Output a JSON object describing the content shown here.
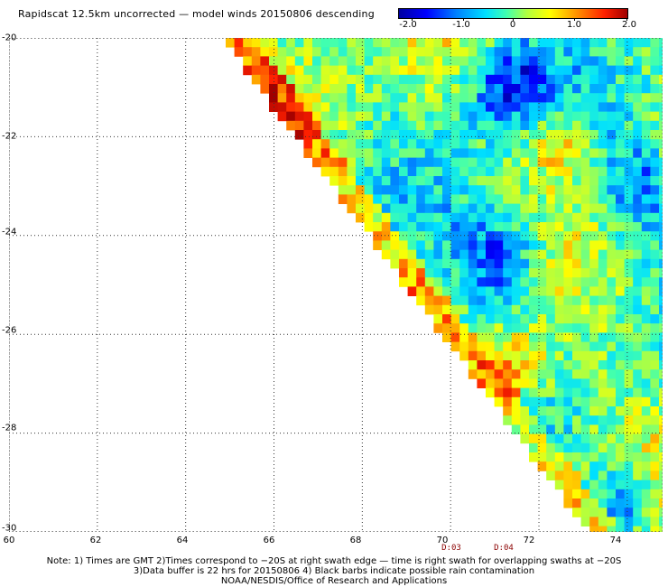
{
  "title": "Rapidscat 12.5km uncorrected — model winds 20150806 descending",
  "colorbar": {
    "ticks": [
      "-2.0",
      "-1.0",
      "0",
      "1.0",
      "2.0"
    ],
    "stops": [
      "#0000a0",
      "#0000ff",
      "#0080ff",
      "#00e0ff",
      "#40ffb0",
      "#b0ff40",
      "#ffff00",
      "#ff9000",
      "#ff2000",
      "#a00000"
    ]
  },
  "axes": {
    "lat_labels": [
      "-20",
      "-22",
      "-24",
      "-26",
      "-28",
      "-30"
    ],
    "lon_labels": [
      "60",
      "62",
      "64",
      "66",
      "68",
      "70",
      "72",
      "74"
    ],
    "lat_range": [
      -30,
      -20
    ],
    "lon_range": [
      60,
      74.8
    ],
    "grid": "dotted"
  },
  "swath_times": [
    {
      "label": "D:03",
      "lon": 70.2
    },
    {
      "label": "D:04",
      "lon": 71.4
    }
  ],
  "notes": [
    "Note: 1) Times are GMT 2)Times correspond to −20S at right swath edge — time is right swath for overlapping swaths at −20S",
    "3)Data buffer is 22 hrs for 20150806 4) Black barbs indicate possible rain contamination",
    "NOAA/NESDIS/Office of Research and Applications"
  ]
}
